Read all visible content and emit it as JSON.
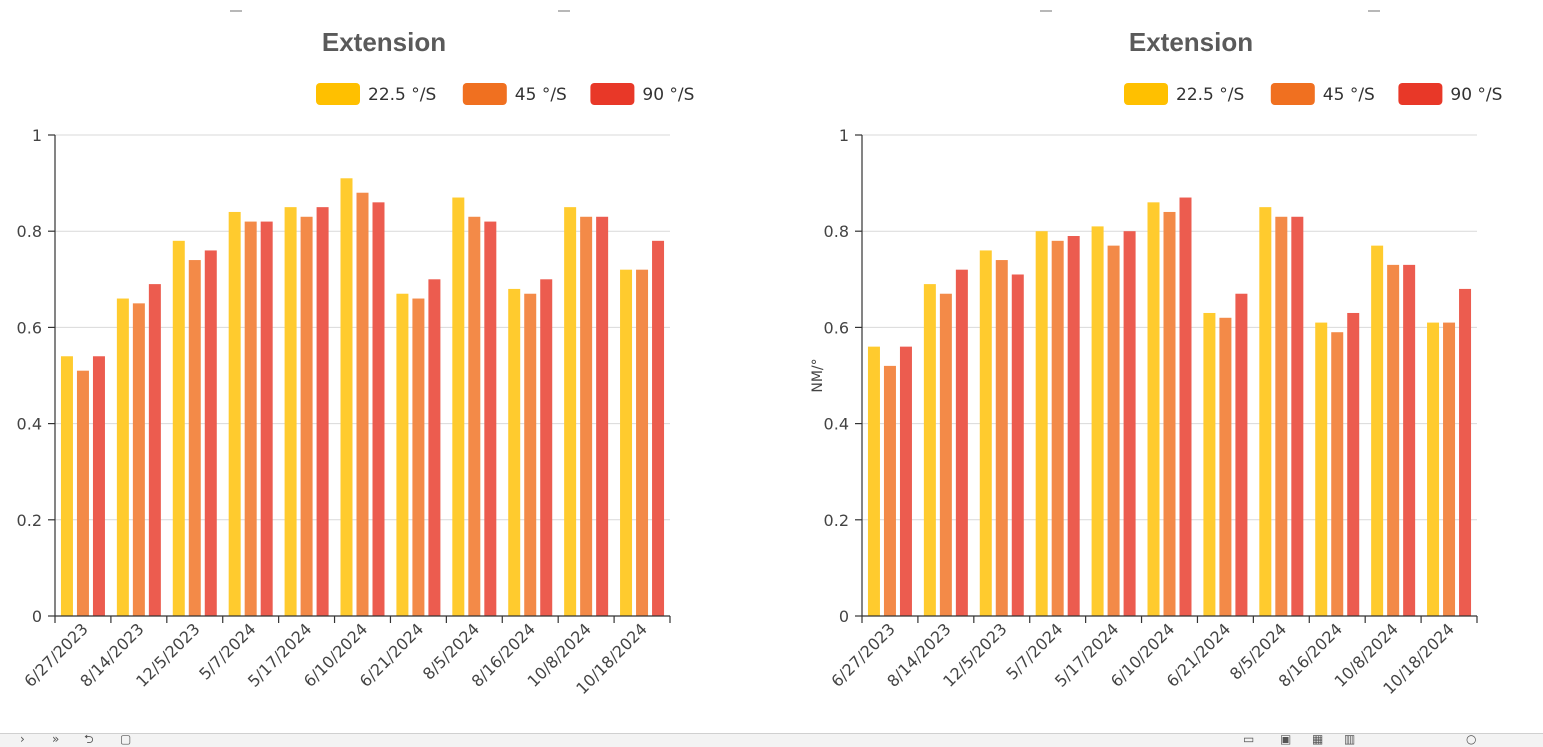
{
  "chart_data": [
    {
      "type": "bar",
      "title": "Extension",
      "ylabel": "",
      "xlabel": "",
      "ylim": [
        0,
        1
      ],
      "yticks": [
        0,
        0.2,
        0.4,
        0.6,
        0.8,
        1
      ],
      "ytick_labels": [
        "0",
        "0.2",
        "0.4",
        "0.6",
        "0.8",
        "1"
      ],
      "legend_position": "top-right",
      "grid": true,
      "categories": [
        "6/27/2023",
        "8/14/2023",
        "12/5/2023",
        "5/7/2024",
        "5/17/2024",
        "6/10/2024",
        "6/21/2024",
        "8/5/2024",
        "8/16/2024",
        "10/8/2024",
        "10/18/2024"
      ],
      "series": [
        {
          "name": "22.5 °/S",
          "color": "#ffc000",
          "values": [
            0.54,
            0.66,
            0.78,
            0.84,
            0.85,
            0.91,
            0.67,
            0.87,
            0.68,
            0.85,
            0.72
          ]
        },
        {
          "name": "45 °/S",
          "color": "#f07020",
          "values": [
            0.51,
            0.65,
            0.74,
            0.82,
            0.83,
            0.88,
            0.66,
            0.83,
            0.67,
            0.83,
            0.72
          ]
        },
        {
          "name": "90 °/S",
          "color": "#e83828",
          "values": [
            0.54,
            0.69,
            0.76,
            0.82,
            0.85,
            0.86,
            0.7,
            0.82,
            0.7,
            0.83,
            0.78
          ]
        }
      ]
    },
    {
      "type": "bar",
      "title": "Extension",
      "ylabel": "NM/°",
      "xlabel": "",
      "ylim": [
        0,
        1
      ],
      "yticks": [
        0,
        0.2,
        0.4,
        0.6,
        0.8,
        1
      ],
      "ytick_labels": [
        "0",
        "0.2",
        "0.4",
        "0.6",
        "0.8",
        "1"
      ],
      "legend_position": "top-right",
      "grid": true,
      "categories": [
        "6/27/2023",
        "8/14/2023",
        "12/5/2023",
        "5/7/2024",
        "5/17/2024",
        "6/10/2024",
        "6/21/2024",
        "8/5/2024",
        "8/16/2024",
        "10/8/2024",
        "10/18/2024"
      ],
      "series": [
        {
          "name": "22.5 °/S",
          "color": "#ffc000",
          "values": [
            0.56,
            0.69,
            0.76,
            0.8,
            0.81,
            0.86,
            0.63,
            0.85,
            0.61,
            0.77,
            0.61
          ]
        },
        {
          "name": "45 °/S",
          "color": "#f07020",
          "values": [
            0.52,
            0.67,
            0.74,
            0.78,
            0.77,
            0.84,
            0.62,
            0.83,
            0.59,
            0.73,
            0.61
          ]
        },
        {
          "name": "90 °/S",
          "color": "#e83828",
          "values": [
            0.56,
            0.72,
            0.71,
            0.79,
            0.8,
            0.87,
            0.67,
            0.83,
            0.63,
            0.73,
            0.68
          ]
        }
      ]
    }
  ]
}
